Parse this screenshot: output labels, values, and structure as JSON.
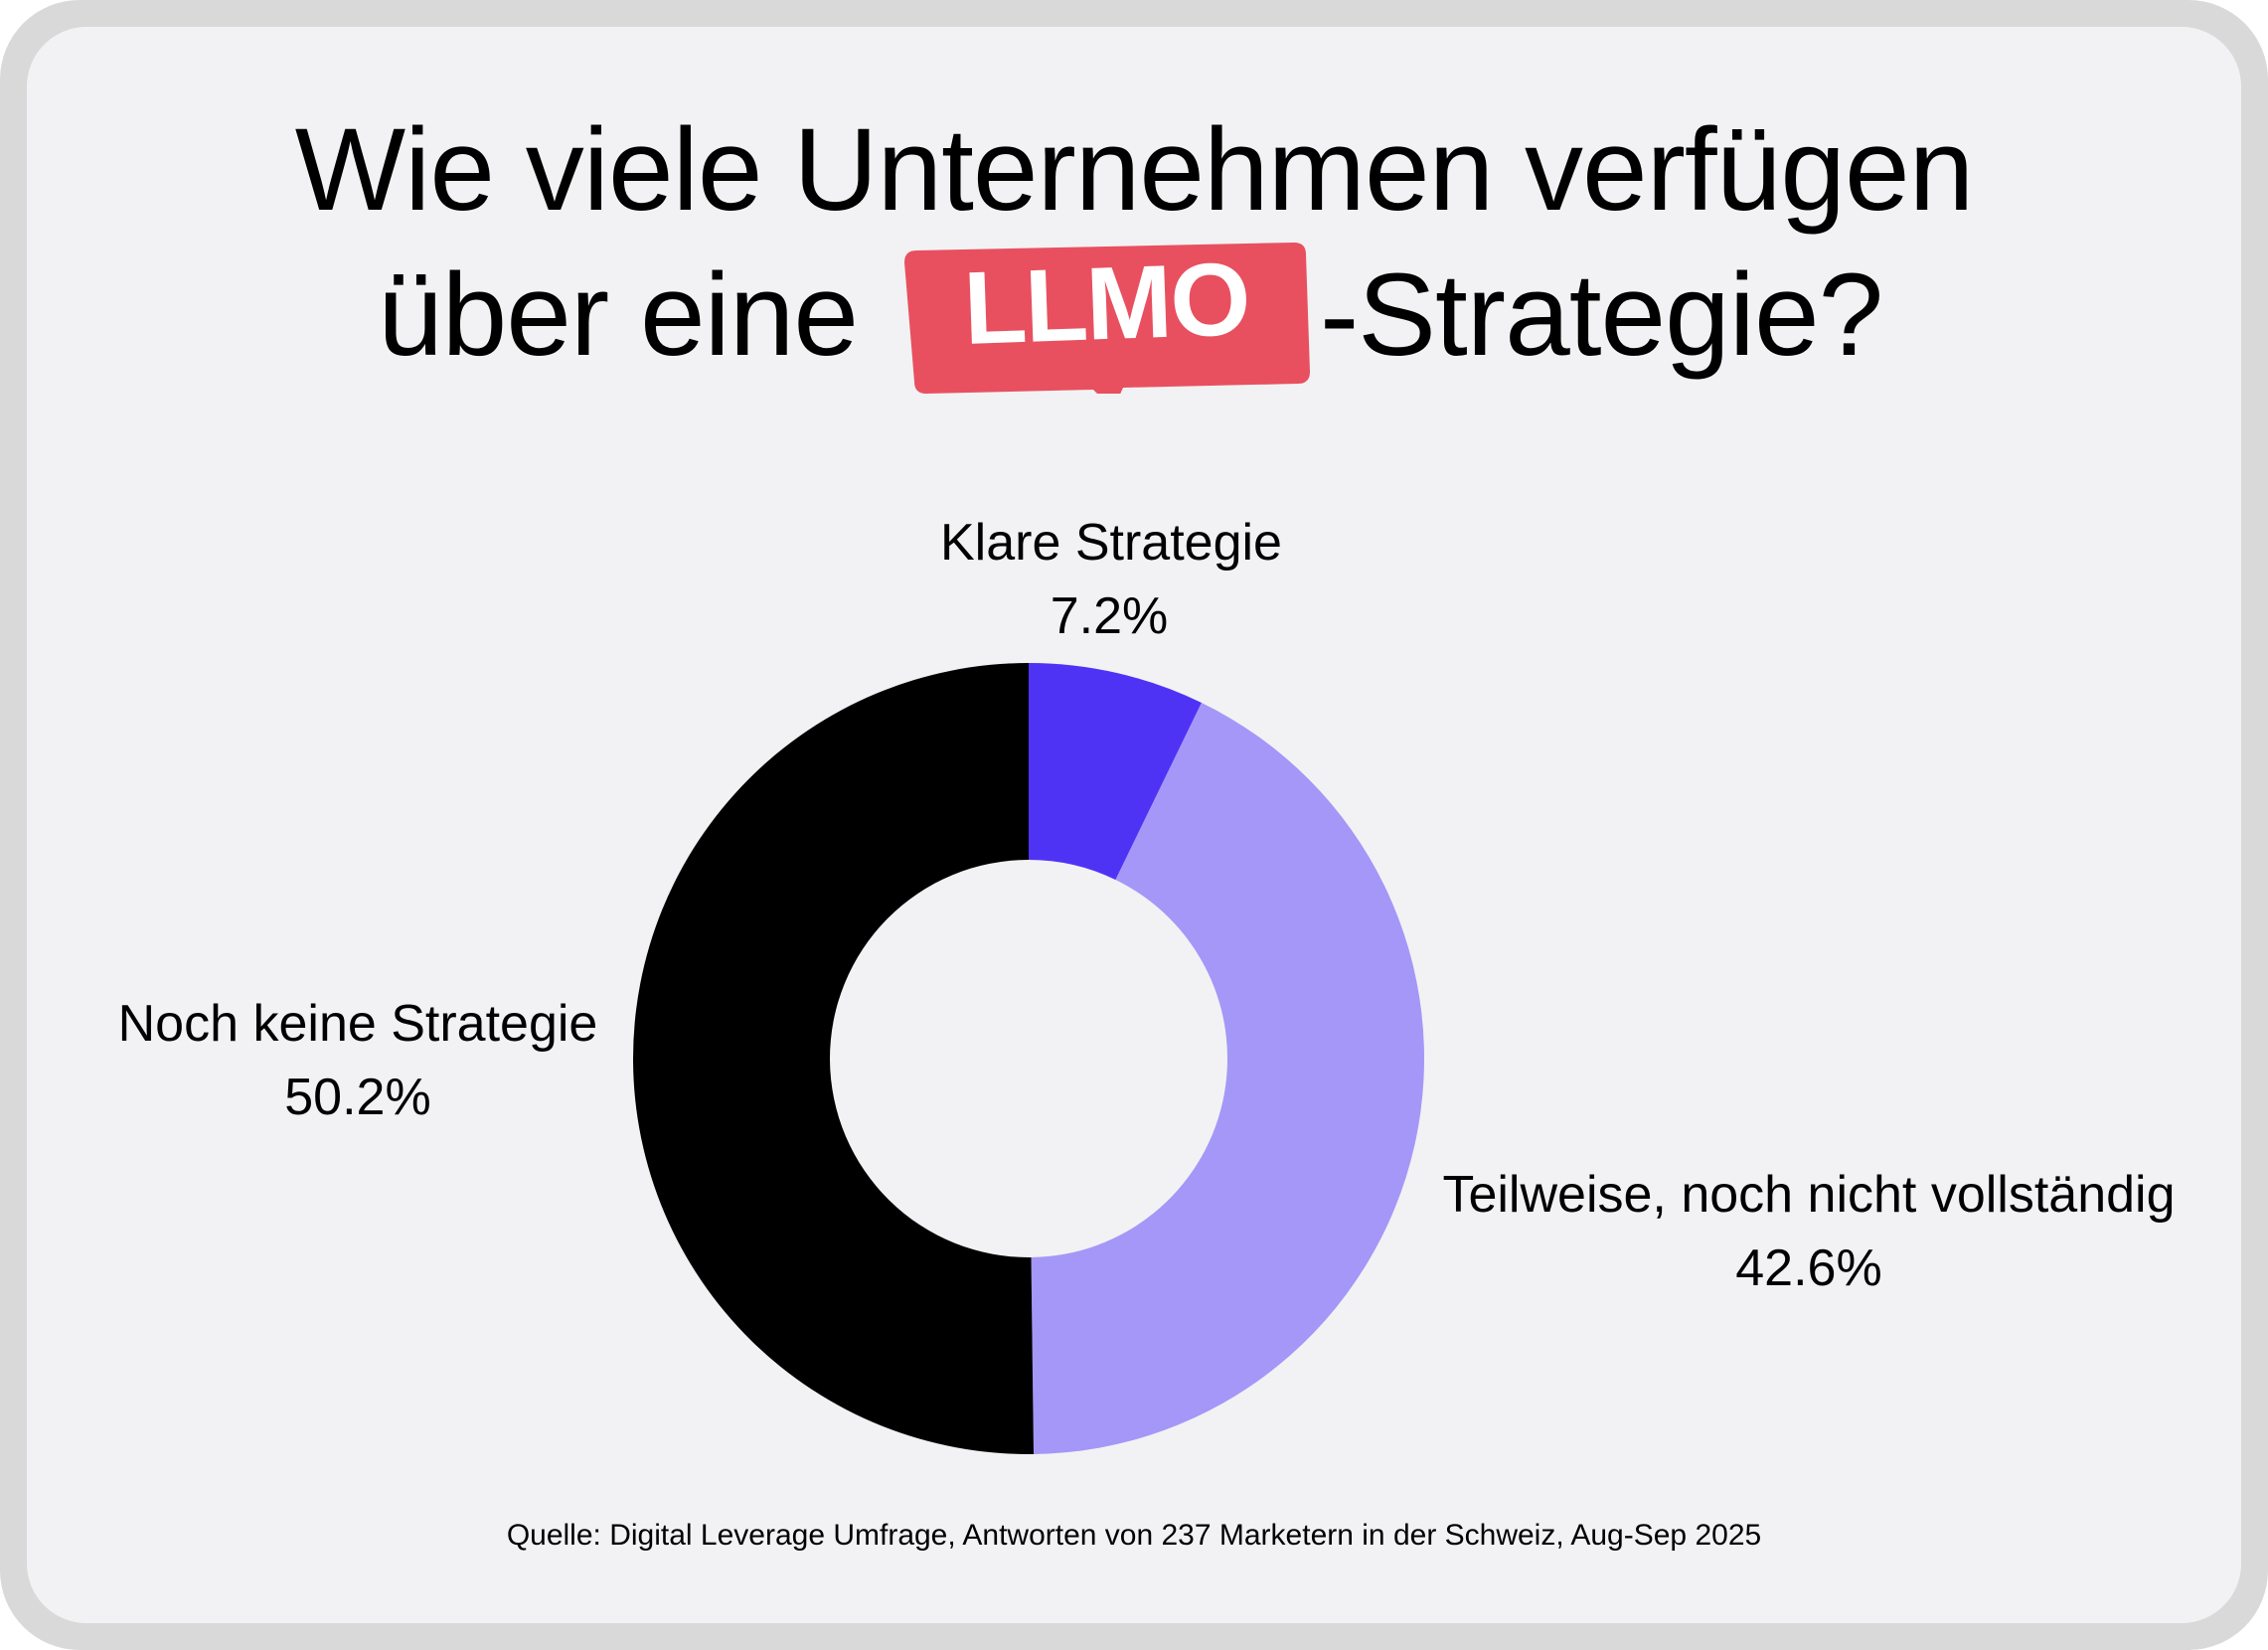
{
  "title": {
    "line1": "Wie viele Unternehmen verfügen",
    "line2_before": "über eine",
    "badge": "LLMO",
    "line2_after": "-Strategie?"
  },
  "colors": {
    "background": "#f2f2f4",
    "frame": "#d9d9d9",
    "badge": "#e8505f",
    "klare": "#4f33f5",
    "teilweise": "#a497f8",
    "keine": "#000000"
  },
  "chart_data": {
    "type": "pie",
    "style": "donut",
    "start": "top",
    "direction": "clockwise",
    "slices": [
      {
        "label": "Klare Strategie",
        "value": 7.2,
        "value_label": "7.2%",
        "color": "#4f33f5"
      },
      {
        "label": "Teilweise, noch nicht vollständig",
        "value": 42.6,
        "value_label": "42.6%",
        "color": "#a497f8"
      },
      {
        "label": "Noch keine Strategie",
        "value": 50.2,
        "value_label": "50.2%",
        "color": "#000000"
      }
    ]
  },
  "source": "Quelle: Digital Leverage Umfrage, Antworten von 237 Marketern in der Schweiz, Aug-Sep 2025"
}
